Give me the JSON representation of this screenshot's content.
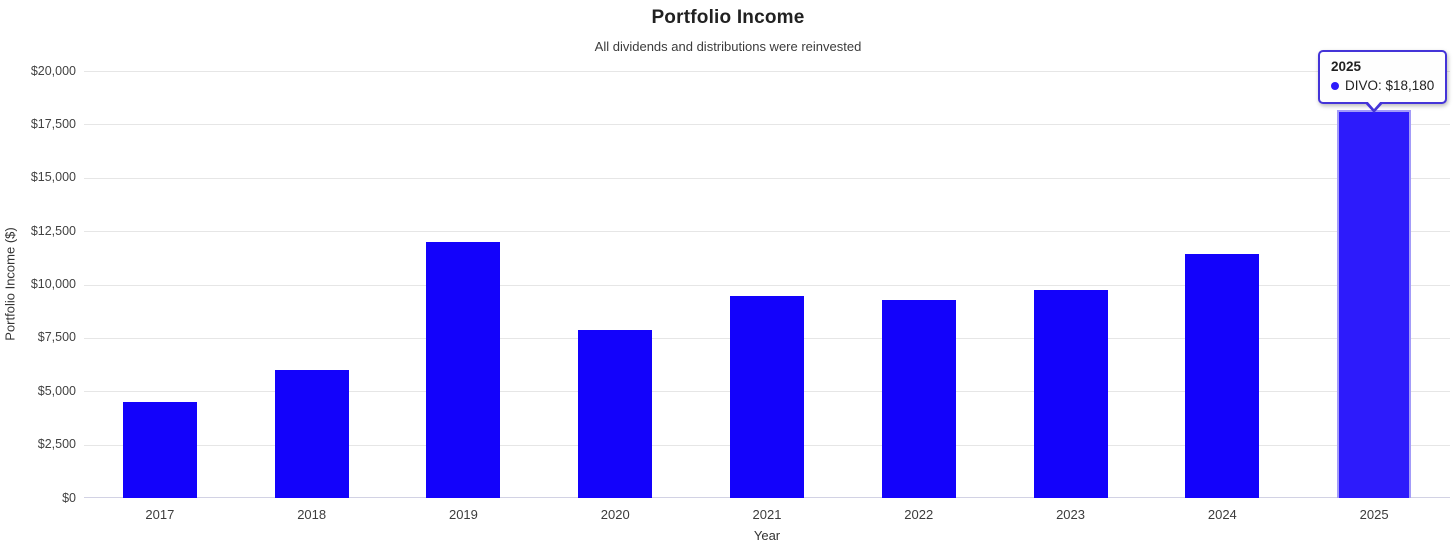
{
  "chart": {
    "title": "Portfolio Income",
    "subtitle": "All dividends and distributions were reinvested",
    "xlabel": "Year",
    "ylabel": "Portfolio Income ($)"
  },
  "chart_data": {
    "type": "bar",
    "title": "Portfolio Income",
    "subtitle": "All dividends and distributions were reinvested",
    "xlabel": "Year",
    "ylabel": "Portfolio Income ($)",
    "categories": [
      "2017",
      "2018",
      "2019",
      "2020",
      "2021",
      "2022",
      "2023",
      "2024",
      "2025"
    ],
    "series": [
      {
        "name": "DIVO",
        "values": [
          4500,
          6000,
          11990,
          7890,
          9460,
          9270,
          9740,
          11420,
          18180
        ]
      }
    ],
    "ylim": [
      0,
      20000
    ],
    "grid": true,
    "legend_position": "none",
    "highlighted_index": 8,
    "y_ticks": [
      {
        "value": 0,
        "label": "$0"
      },
      {
        "value": 2500,
        "label": "$2,500"
      },
      {
        "value": 5000,
        "label": "$5,000"
      },
      {
        "value": 7500,
        "label": "$7,500"
      },
      {
        "value": 10000,
        "label": "$10,000"
      },
      {
        "value": 12500,
        "label": "$12,500"
      },
      {
        "value": 15000,
        "label": "$15,000"
      },
      {
        "value": 17500,
        "label": "$17,500"
      },
      {
        "value": 20000,
        "label": "$20,000"
      }
    ]
  },
  "tooltip": {
    "title": "2025",
    "entry": "DIVO: $18,180"
  },
  "colors": {
    "bar": "#1302fb",
    "bar_highlight": "#2d1bfb",
    "tooltip_border": "#4434d8",
    "grid": "#e6e6e6",
    "axis_line": "#d2d2e4"
  }
}
